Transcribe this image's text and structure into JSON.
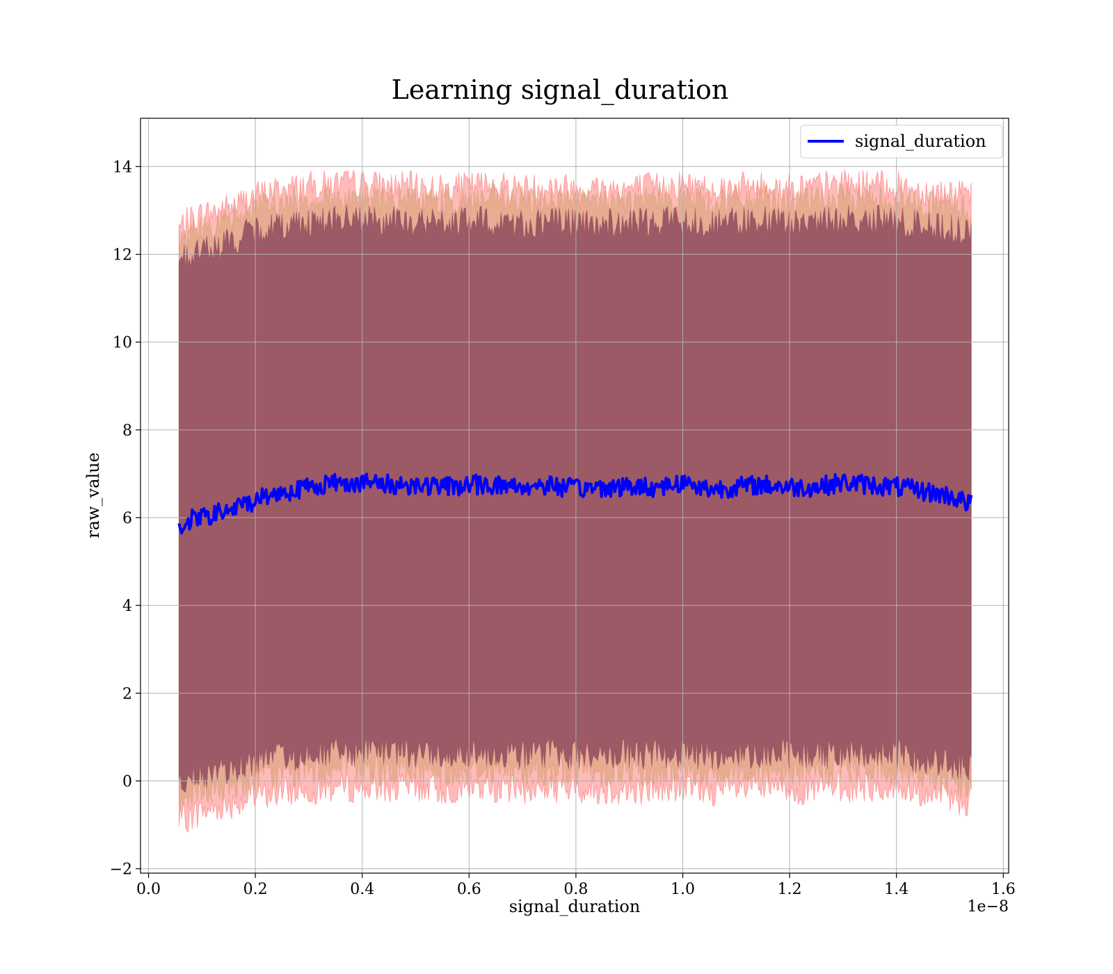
{
  "chart_data": {
    "type": "line",
    "title": "Learning signal_duration",
    "xlabel": "signal_duration",
    "ylabel": "raw_value",
    "x_scale_label": "1e−8",
    "xlim": [
      -0.015,
      1.61
    ],
    "ylim": [
      -2.1,
      15.1
    ],
    "x_ticks": [
      0.0,
      0.2,
      0.4,
      0.6,
      0.8,
      1.0,
      1.2,
      1.4,
      1.6
    ],
    "x_tick_labels": [
      "0.0",
      "0.2",
      "0.4",
      "0.6",
      "0.8",
      "1.0",
      "1.2",
      "1.4",
      "1.6"
    ],
    "y_ticks": [
      -2,
      0,
      2,
      4,
      6,
      8,
      10,
      12,
      14
    ],
    "y_tick_labels": [
      "−2",
      "0",
      "2",
      "4",
      "6",
      "8",
      "10",
      "12",
      "14"
    ],
    "grid": true,
    "legend_position": "top-right",
    "series": [
      {
        "name": "signal_duration",
        "color": "#0000ff",
        "x": [
          0.057,
          0.08,
          0.1,
          0.13,
          0.16,
          0.19,
          0.22,
          0.26,
          0.3,
          0.35,
          0.4,
          0.45,
          0.5,
          0.55,
          0.6,
          0.65,
          0.7,
          0.75,
          0.8,
          0.85,
          0.9,
          0.95,
          1.0,
          1.05,
          1.1,
          1.15,
          1.2,
          1.25,
          1.3,
          1.35,
          1.4,
          1.45,
          1.5,
          1.54
        ],
        "values": [
          5.8,
          5.95,
          6.0,
          6.1,
          6.2,
          6.35,
          6.5,
          6.6,
          6.7,
          6.8,
          6.8,
          6.75,
          6.75,
          6.7,
          6.75,
          6.75,
          6.7,
          6.75,
          6.65,
          6.7,
          6.7,
          6.7,
          6.8,
          6.65,
          6.7,
          6.75,
          6.7,
          6.7,
          6.8,
          6.75,
          6.7,
          6.6,
          6.5,
          6.3
        ]
      }
    ],
    "bands": [
      {
        "name": "outer-band",
        "color": "#ff6666",
        "upper": [
          12.6,
          12.8,
          12.9,
          13.0,
          13.1,
          13.3,
          13.4,
          13.5,
          13.55,
          13.6,
          13.6,
          13.55,
          13.55,
          13.5,
          13.55,
          13.6,
          13.5,
          13.55,
          13.5,
          13.5,
          13.5,
          13.55,
          13.6,
          13.5,
          13.55,
          13.55,
          13.5,
          13.55,
          13.6,
          13.6,
          13.55,
          13.45,
          13.4,
          13.3
        ],
        "lower": [
          -0.9,
          -0.8,
          -0.7,
          -0.6,
          -0.5,
          -0.4,
          -0.3,
          -0.25,
          -0.2,
          -0.15,
          -0.15,
          -0.15,
          -0.15,
          -0.2,
          -0.15,
          -0.15,
          -0.2,
          -0.15,
          -0.2,
          -0.2,
          -0.2,
          -0.2,
          -0.15,
          -0.25,
          -0.2,
          -0.15,
          -0.2,
          -0.2,
          -0.15,
          -0.15,
          -0.2,
          -0.3,
          -0.4,
          -0.5
        ]
      },
      {
        "name": "middle-band",
        "color": "#d4a070",
        "upper": [
          12.3,
          12.5,
          12.6,
          12.7,
          12.8,
          13.0,
          13.1,
          13.2,
          13.25,
          13.3,
          13.3,
          13.25,
          13.25,
          13.2,
          13.25,
          13.25,
          13.2,
          13.25,
          13.2,
          13.2,
          13.2,
          13.25,
          13.3,
          13.2,
          13.25,
          13.25,
          13.2,
          13.25,
          13.3,
          13.3,
          13.25,
          13.15,
          13.1,
          13.0
        ],
        "lower": [
          -0.5,
          -0.4,
          -0.3,
          -0.2,
          -0.1,
          0.0,
          0.1,
          0.15,
          0.2,
          0.25,
          0.25,
          0.25,
          0.25,
          0.2,
          0.25,
          0.25,
          0.2,
          0.25,
          0.2,
          0.2,
          0.2,
          0.2,
          0.25,
          0.15,
          0.2,
          0.25,
          0.2,
          0.2,
          0.25,
          0.25,
          0.2,
          0.1,
          0.0,
          -0.1
        ]
      },
      {
        "name": "inner-band",
        "color": "#8e4a5e",
        "upper": [
          11.9,
          12.0,
          12.1,
          12.2,
          12.3,
          12.5,
          12.6,
          12.7,
          12.75,
          12.8,
          12.8,
          12.75,
          12.75,
          12.7,
          12.75,
          12.75,
          12.7,
          12.75,
          12.7,
          12.7,
          12.7,
          12.75,
          12.8,
          12.7,
          12.75,
          12.75,
          12.7,
          12.75,
          12.8,
          12.8,
          12.75,
          12.65,
          12.6,
          12.4
        ],
        "lower": [
          -0.1,
          0.0,
          0.1,
          0.2,
          0.3,
          0.4,
          0.5,
          0.55,
          0.6,
          0.65,
          0.65,
          0.65,
          0.65,
          0.6,
          0.65,
          0.65,
          0.6,
          0.65,
          0.6,
          0.6,
          0.6,
          0.6,
          0.65,
          0.55,
          0.6,
          0.65,
          0.6,
          0.6,
          0.65,
          0.65,
          0.6,
          0.5,
          0.4,
          0.3
        ]
      }
    ]
  }
}
